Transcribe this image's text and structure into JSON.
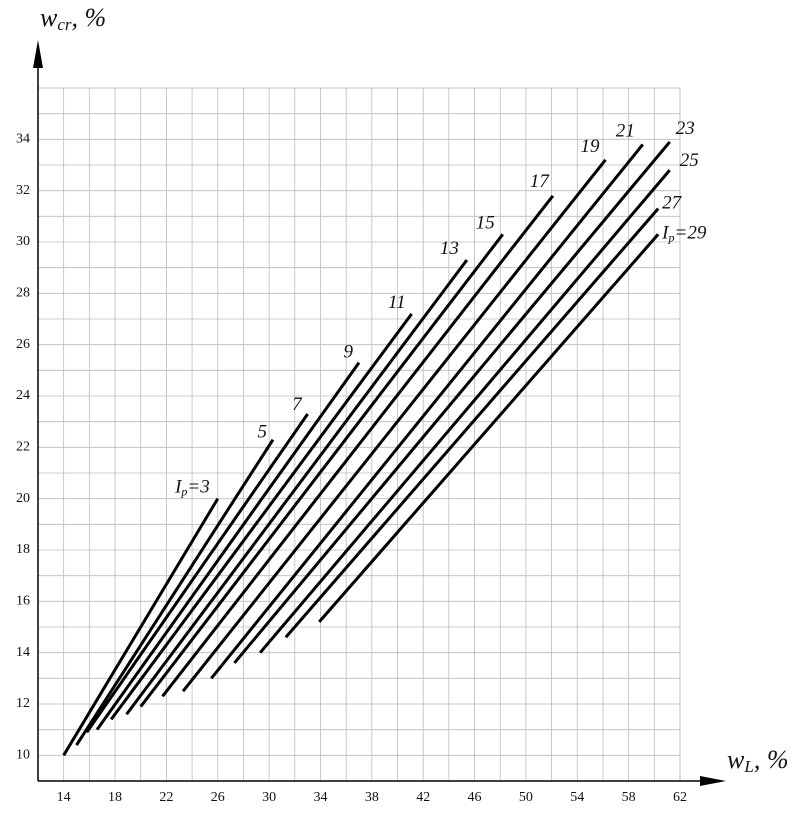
{
  "chart_data": {
    "type": "line",
    "x_label": {
      "base": "w",
      "sub": "L",
      "unit": ", %"
    },
    "y_label": {
      "base": "w",
      "sub": "cr",
      "unit": ", %"
    },
    "label_prefix": {
      "base": "I",
      "sub": "p",
      "sign": "="
    },
    "xlim": [
      12,
      62
    ],
    "ylim": [
      9,
      36
    ],
    "xticks": [
      14,
      18,
      22,
      26,
      30,
      34,
      38,
      42,
      46,
      50,
      54,
      58,
      62
    ],
    "yticks": [
      10,
      12,
      14,
      16,
      18,
      20,
      22,
      24,
      26,
      28,
      30,
      32,
      34
    ],
    "grid": true,
    "color": "#000000",
    "series": [
      {
        "name": "3",
        "x": [
          14,
          26
        ],
        "values": [
          10,
          20
        ]
      },
      {
        "name": "5",
        "x": [
          15,
          30.3
        ],
        "values": [
          10.4,
          22.3
        ]
      },
      {
        "name": "7",
        "x": [
          15.8,
          33
        ],
        "values": [
          10.9,
          23.3
        ]
      },
      {
        "name": "9",
        "x": [
          16.6,
          37
        ],
        "values": [
          11,
          25.3
        ]
      },
      {
        "name": "11",
        "x": [
          17.7,
          41.1
        ],
        "values": [
          11.4,
          27.2
        ]
      },
      {
        "name": "13",
        "x": [
          18.9,
          45.4
        ],
        "values": [
          11.6,
          29.3
        ]
      },
      {
        "name": "15",
        "x": [
          20,
          48.2
        ],
        "values": [
          11.9,
          30.3
        ]
      },
      {
        "name": "17",
        "x": [
          21.7,
          52.1
        ],
        "values": [
          12.3,
          31.8
        ]
      },
      {
        "name": "19",
        "x": [
          23.3,
          56.2
        ],
        "values": [
          12.5,
          33.2
        ]
      },
      {
        "name": "21",
        "x": [
          25.5,
          59.1
        ],
        "values": [
          13,
          33.8
        ]
      },
      {
        "name": "23",
        "x": [
          27.3,
          61.2
        ],
        "values": [
          13.6,
          33.9
        ]
      },
      {
        "name": "25",
        "x": [
          29.3,
          61.2
        ],
        "values": [
          14,
          32.8
        ]
      },
      {
        "name": "27",
        "x": [
          31.3,
          60.3
        ],
        "values": [
          14.6,
          31.3
        ]
      },
      {
        "name": "29",
        "x": [
          33.9,
          60.3
        ],
        "values": [
          15.2,
          30.3
        ]
      }
    ]
  }
}
